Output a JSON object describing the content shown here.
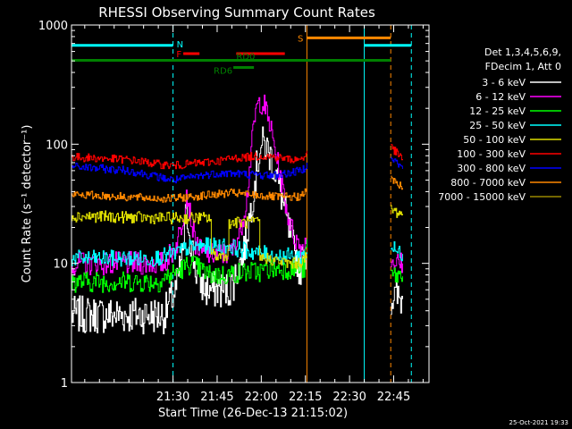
{
  "chart_data": {
    "type": "line",
    "title": "RHESSI Observing Summary Count Rates",
    "xlabel": "Start Time (26-Dec-13 21:15:02)",
    "ylabel": "Count Rate (s⁻¹ detector⁻¹)",
    "yscale": "log",
    "ylim": [
      1,
      1000
    ],
    "xlim_minutes": [
      -19.5,
      102
    ],
    "x_ticks": [
      {
        "t": 15,
        "label": "21:30"
      },
      {
        "t": 30,
        "label": "21:45"
      },
      {
        "t": 45,
        "label": "22:00"
      },
      {
        "t": 60,
        "label": "22:15"
      },
      {
        "t": 75,
        "label": "22:30"
      },
      {
        "t": 90,
        "label": "22:45"
      }
    ],
    "y_ticks": [
      {
        "v": 1,
        "label": "1"
      },
      {
        "v": 10,
        "label": "10"
      },
      {
        "v": 100,
        "label": "100"
      },
      {
        "v": 1000,
        "label": "1000"
      }
    ],
    "legend": {
      "placement": "right",
      "header": [
        "Det 1,3,4,5,6,9,",
        "FDecim 1, Att 0"
      ]
    },
    "series": [
      {
        "name": "3 - 6 keV",
        "color": "#ffffff",
        "noise": 0.16,
        "values": [
          [
            -19.5,
            3.7
          ],
          [
            12,
            3.7
          ],
          [
            14,
            4.8
          ],
          [
            16,
            6
          ],
          [
            18,
            11
          ],
          [
            19.5,
            28
          ],
          [
            21,
            15
          ],
          [
            22.5,
            9
          ],
          [
            24,
            7
          ],
          [
            26,
            6
          ],
          [
            28,
            6
          ],
          [
            30,
            6
          ],
          [
            32,
            6
          ],
          [
            34,
            6
          ],
          [
            35.5,
            7
          ],
          [
            37,
            9
          ],
          [
            39,
            13
          ],
          [
            41,
            25
          ],
          [
            43,
            55
          ],
          [
            44.5,
            95
          ],
          [
            46,
            100
          ],
          [
            48,
            80
          ],
          [
            50,
            55
          ],
          [
            52,
            35
          ],
          [
            54,
            20
          ],
          [
            56,
            13
          ],
          [
            58,
            9
          ],
          [
            59.5,
            12
          ],
          [
            60.5,
            12
          ],
          [
            60.5,
            null
          ],
          [
            89,
            null
          ],
          [
            89,
            5.2
          ],
          [
            93,
            5
          ]
        ]
      },
      {
        "name": "6 - 12 keV",
        "color": "#ff00ff",
        "noise": 0.1,
        "values": [
          [
            -19.5,
            10
          ],
          [
            12,
            10
          ],
          [
            14,
            12
          ],
          [
            16,
            14
          ],
          [
            18,
            22
          ],
          [
            19.5,
            40
          ],
          [
            21,
            24
          ],
          [
            22.5,
            15
          ],
          [
            25,
            12
          ],
          [
            28,
            12
          ],
          [
            31,
            12
          ],
          [
            34,
            12
          ],
          [
            36,
            14
          ],
          [
            38,
            20
          ],
          [
            40,
            35
          ],
          [
            41.5,
            90
          ],
          [
            43,
            190
          ],
          [
            44.5,
            230
          ],
          [
            46,
            210
          ],
          [
            48,
            140
          ],
          [
            50,
            80
          ],
          [
            52,
            45
          ],
          [
            54,
            25
          ],
          [
            56,
            17
          ],
          [
            58,
            14
          ],
          [
            59.5,
            14
          ],
          [
            60.5,
            16
          ],
          [
            60.5,
            null
          ],
          [
            89,
            null
          ],
          [
            89,
            11
          ],
          [
            91,
            10
          ],
          [
            93,
            10
          ]
        ]
      },
      {
        "name": "12 - 25 keV",
        "color": "#00ff00",
        "noise": 0.09,
        "values": [
          [
            -19.5,
            7
          ],
          [
            10,
            7
          ],
          [
            14,
            8
          ],
          [
            18,
            9
          ],
          [
            21,
            10
          ],
          [
            24,
            9
          ],
          [
            27,
            8
          ],
          [
            30,
            8
          ],
          [
            33,
            8
          ],
          [
            36,
            8.3
          ],
          [
            40,
            8.5
          ],
          [
            44,
            8.5
          ],
          [
            48,
            9
          ],
          [
            52,
            9
          ],
          [
            56,
            9
          ],
          [
            59.5,
            9
          ],
          [
            60.5,
            16
          ],
          [
            60.5,
            null
          ],
          [
            89,
            null
          ],
          [
            89,
            8
          ],
          [
            93,
            7.8
          ]
        ]
      },
      {
        "name": "25 - 50 keV",
        "color": "#00ffff",
        "noise": 0.07,
        "values": [
          [
            -19.5,
            11
          ],
          [
            8,
            11
          ],
          [
            15,
            12
          ],
          [
            20,
            13.5
          ],
          [
            25,
            14
          ],
          [
            30,
            14
          ],
          [
            34,
            14
          ],
          [
            38,
            13
          ],
          [
            42,
            12.5
          ],
          [
            46,
            12
          ],
          [
            50,
            11.5
          ],
          [
            54,
            11.5
          ],
          [
            58,
            11.5
          ],
          [
            60.5,
            12
          ],
          [
            60.5,
            null
          ],
          [
            89,
            null
          ],
          [
            89,
            14
          ],
          [
            91,
            12.5
          ],
          [
            93,
            12
          ]
        ]
      },
      {
        "name": "50 - 100 keV",
        "color": "#dddd00",
        "noise": 0.05,
        "values": [
          [
            -19.5,
            25
          ],
          [
            10,
            24
          ],
          [
            15,
            24
          ],
          [
            20,
            24
          ],
          [
            25,
            24
          ],
          [
            28,
            24
          ],
          [
            28,
            12
          ],
          [
            31,
            11.5
          ],
          [
            34,
            12
          ],
          [
            34,
            22
          ],
          [
            38,
            22
          ],
          [
            42,
            22
          ],
          [
            44.5,
            22
          ],
          [
            44.5,
            11
          ],
          [
            47,
            11
          ],
          [
            50,
            10.5
          ],
          [
            54,
            10
          ],
          [
            57,
            10
          ],
          [
            59,
            10.5
          ],
          [
            60.5,
            11.5
          ],
          [
            60.5,
            null
          ],
          [
            89,
            null
          ],
          [
            89,
            28
          ],
          [
            91,
            27
          ],
          [
            93,
            26
          ]
        ]
      },
      {
        "name": "100 - 300 keV",
        "color": "#ff0000",
        "noise": 0.035,
        "values": [
          [
            -19.5,
            78
          ],
          [
            0,
            74
          ],
          [
            10,
            68
          ],
          [
            15,
            66
          ],
          [
            20,
            68
          ],
          [
            25,
            70
          ],
          [
            30,
            72
          ],
          [
            35,
            76
          ],
          [
            40,
            78
          ],
          [
            45,
            80
          ],
          [
            50,
            78
          ],
          [
            54,
            75
          ],
          [
            57,
            74
          ],
          [
            59.5,
            78
          ],
          [
            60.5,
            88
          ],
          [
            60.5,
            null
          ],
          [
            89,
            null
          ],
          [
            89,
            95
          ],
          [
            91,
            84
          ],
          [
            93,
            75
          ]
        ]
      },
      {
        "name": "300 - 800 keV",
        "color": "#0000ff",
        "noise": 0.035,
        "values": [
          [
            -19.5,
            65
          ],
          [
            0,
            60
          ],
          [
            10,
            53
          ],
          [
            15,
            50
          ],
          [
            20,
            52
          ],
          [
            25,
            55
          ],
          [
            30,
            57
          ],
          [
            35,
            57
          ],
          [
            40,
            56
          ],
          [
            45,
            55
          ],
          [
            50,
            55
          ],
          [
            54,
            57
          ],
          [
            57,
            59
          ],
          [
            59.5,
            63
          ],
          [
            60.5,
            70
          ],
          [
            60.5,
            null
          ],
          [
            89,
            null
          ],
          [
            89,
            80
          ],
          [
            91,
            70
          ],
          [
            93,
            62
          ]
        ]
      },
      {
        "name": "800 - 7000 keV",
        "color": "#ff8800",
        "noise": 0.035,
        "values": [
          [
            -19.5,
            38
          ],
          [
            0,
            36
          ],
          [
            10,
            35
          ],
          [
            15,
            35
          ],
          [
            20,
            36
          ],
          [
            25,
            37
          ],
          [
            30,
            38
          ],
          [
            35,
            39
          ],
          [
            40,
            38
          ],
          [
            45,
            37
          ],
          [
            50,
            36
          ],
          [
            54,
            36
          ],
          [
            57,
            36
          ],
          [
            59.5,
            38
          ],
          [
            60.5,
            42
          ],
          [
            60.5,
            null
          ],
          [
            89,
            null
          ],
          [
            89,
            52
          ],
          [
            91,
            47
          ],
          [
            93,
            43
          ]
        ]
      },
      {
        "name": "7000 - 15000 keV",
        "color": "#998800",
        "noise": 0,
        "values": []
      }
    ],
    "annotations": [
      {
        "label": "N",
        "color": "#00ffff",
        "segments": [
          [
            -19.5,
            15
          ],
          [
            80,
            96
          ]
        ],
        "level": 675
      },
      {
        "label": "S",
        "color": "#ff8800",
        "segments": [
          [
            60.5,
            89
          ]
        ],
        "level": 780
      },
      {
        "label": "F",
        "color": "#ff0000",
        "segments": [
          [
            18.5,
            24
          ]
        ],
        "level": 575
      },
      {
        "label": "",
        "color": "#ff0000",
        "segments": [
          [
            36.5,
            53
          ]
        ],
        "level": 575
      },
      {
        "label": "RD0",
        "color": "#008000",
        "segments": [
          [
            -19.5,
            89
          ]
        ],
        "level": 505
      },
      {
        "label": "RD6",
        "color": "#008000",
        "segments": [
          [
            35.5,
            42.5
          ]
        ],
        "level": 440
      }
    ],
    "vertical_markers": [
      {
        "t": -19.5,
        "color": "#00ffff",
        "dashed": false
      },
      {
        "t": 15,
        "color": "#00ffff",
        "dashed": true
      },
      {
        "t": 60.5,
        "color": "#ff8800",
        "dashed": false
      },
      {
        "t": 80,
        "color": "#00ffff",
        "dashed": false
      },
      {
        "t": 89,
        "color": "#ff8800",
        "dashed": true
      },
      {
        "t": 96,
        "color": "#00ffff",
        "dashed": true
      }
    ],
    "timestamp": "25-Oct-2021 19:33"
  }
}
